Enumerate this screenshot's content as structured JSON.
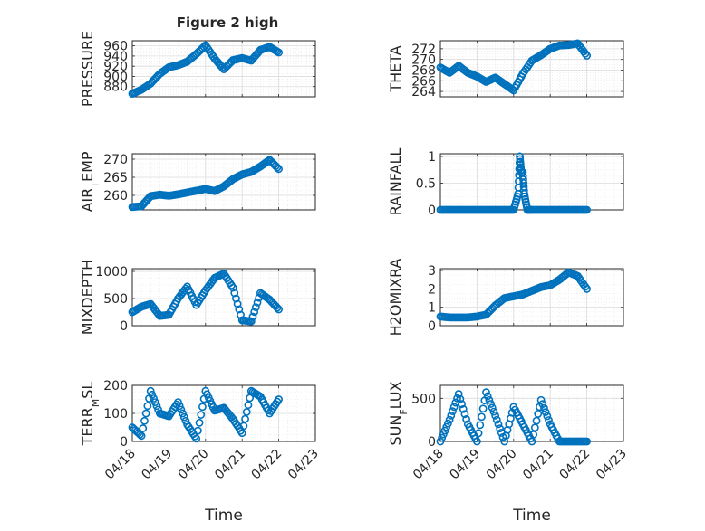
{
  "figure": {
    "title": "Figure 2 high",
    "xlabel": "Time",
    "x_ticks": [
      "04/18",
      "04/19",
      "04/20",
      "04/21",
      "04/22",
      "04/23"
    ],
    "x_range": [
      "04/18",
      "04/23"
    ],
    "marker": "circle",
    "color": "#0072BD",
    "grid": true
  },
  "chart_data": [
    {
      "type": "scatter",
      "ylabel": "PRESSURE",
      "ylim": [
        860,
        970
      ],
      "yticks": [
        880,
        900,
        920,
        940,
        960
      ],
      "x": [
        "04/18 00:00",
        "04/18 06:00",
        "04/18 12:00",
        "04/18 18:00",
        "04/19 00:00",
        "04/19 06:00",
        "04/19 12:00",
        "04/19 18:00",
        "04/20 00:00",
        "04/20 06:00",
        "04/20 12:00",
        "04/20 18:00",
        "04/21 00:00",
        "04/21 06:00",
        "04/21 12:00",
        "04/21 18:00",
        "04/22 00:00"
      ],
      "y": [
        866,
        874,
        886,
        905,
        918,
        922,
        929,
        944,
        961,
        935,
        914,
        932,
        936,
        931,
        952,
        958,
        947
      ]
    },
    {
      "type": "scatter",
      "ylabel": "THETA",
      "ylim": [
        263,
        273.5
      ],
      "yticks": [
        264,
        266,
        268,
        270,
        272
      ],
      "x": [
        "04/18 00:00",
        "04/18 06:00",
        "04/18 12:00",
        "04/18 18:00",
        "04/19 00:00",
        "04/19 06:00",
        "04/19 12:00",
        "04/19 18:00",
        "04/20 00:00",
        "04/20 06:00",
        "04/20 12:00",
        "04/20 18:00",
        "04/21 00:00",
        "04/21 06:00",
        "04/21 12:00",
        "04/21 18:00",
        "04/22 00:00"
      ],
      "y": [
        268.5,
        267.5,
        268.8,
        267.5,
        266.8,
        265.8,
        266.6,
        265.4,
        264.2,
        267.3,
        269.8,
        270.8,
        272,
        272.6,
        272.7,
        273,
        270.7
      ]
    },
    {
      "type": "scatter",
      "ylabel": "AIR_TEMP",
      "ylim": [
        256,
        271.5
      ],
      "yticks": [
        260,
        265,
        270
      ],
      "x": [
        "04/18 00:00",
        "04/18 06:00",
        "04/18 12:00",
        "04/18 18:00",
        "04/19 00:00",
        "04/19 06:00",
        "04/19 12:00",
        "04/19 18:00",
        "04/20 00:00",
        "04/20 06:00",
        "04/20 12:00",
        "04/20 18:00",
        "04/21 00:00",
        "04/21 06:00",
        "04/21 12:00",
        "04/21 18:00",
        "04/22 00:00"
      ],
      "y": [
        256.8,
        257,
        259.8,
        260.2,
        259.9,
        260.3,
        260.8,
        261.3,
        261.8,
        261.2,
        262.5,
        264.5,
        265.8,
        266.5,
        268,
        269.8,
        267.3
      ]
    },
    {
      "type": "scatter",
      "ylabel": "RAINFALL",
      "ylim": [
        0,
        1.05
      ],
      "yticks": [
        0,
        0.5,
        1
      ],
      "x": [
        "04/18 00:00",
        "04/18 06:00",
        "04/18 12:00",
        "04/18 18:00",
        "04/19 00:00",
        "04/19 06:00",
        "04/19 12:00",
        "04/19 18:00",
        "04/20 00:00",
        "04/20 03:00",
        "04/20 04:00",
        "04/20 05:00",
        "04/20 06:00",
        "04/20 07:00",
        "04/20 09:00",
        "04/20 12:00",
        "04/20 18:00",
        "04/21 00:00",
        "04/21 06:00",
        "04/21 12:00",
        "04/21 18:00",
        "04/22 00:00"
      ],
      "y": [
        0,
        0,
        0,
        0,
        0,
        0,
        0,
        0,
        0,
        0.3,
        1,
        0.7,
        0.7,
        0.3,
        0,
        0,
        0,
        0,
        0,
        0,
        0,
        0
      ]
    },
    {
      "type": "scatter",
      "ylabel": "MIXDEPTH",
      "ylim": [
        0,
        1050
      ],
      "yticks": [
        0,
        500,
        1000
      ],
      "x": [
        "04/18 00:00",
        "04/18 06:00",
        "04/18 12:00",
        "04/18 18:00",
        "04/19 00:00",
        "04/19 06:00",
        "04/19 12:00",
        "04/19 18:00",
        "04/20 00:00",
        "04/20 06:00",
        "04/20 12:00",
        "04/20 18:00",
        "04/21 00:00",
        "04/21 06:00",
        "04/21 12:00",
        "04/21 18:00",
        "04/22 00:00"
      ],
      "y": [
        250,
        350,
        400,
        180,
        200,
        500,
        720,
        380,
        650,
        880,
        960,
        700,
        100,
        80,
        600,
        480,
        300
      ]
    },
    {
      "type": "scatter",
      "ylabel": "H2OMIXRA",
      "ylim": [
        0,
        3.1
      ],
      "yticks": [
        0,
        1,
        2,
        3
      ],
      "x": [
        "04/18 00:00",
        "04/18 06:00",
        "04/18 12:00",
        "04/18 18:00",
        "04/19 00:00",
        "04/19 06:00",
        "04/19 12:00",
        "04/19 18:00",
        "04/20 00:00",
        "04/20 06:00",
        "04/20 12:00",
        "04/20 18:00",
        "04/21 00:00",
        "04/21 06:00",
        "04/21 12:00",
        "04/21 18:00",
        "04/22 00:00"
      ],
      "y": [
        0.5,
        0.45,
        0.45,
        0.45,
        0.5,
        0.6,
        1.1,
        1.5,
        1.6,
        1.7,
        1.9,
        2.1,
        2.2,
        2.5,
        2.9,
        2.7,
        2.0
      ]
    },
    {
      "type": "scatter",
      "ylabel": "TERR_MSL",
      "ylim": [
        0,
        200
      ],
      "yticks": [
        0,
        100,
        200
      ],
      "x": [
        "04/18 00:00",
        "04/18 06:00",
        "04/18 12:00",
        "04/18 18:00",
        "04/19 00:00",
        "04/19 06:00",
        "04/19 12:00",
        "04/19 18:00",
        "04/20 00:00",
        "04/20 06:00",
        "04/20 12:00",
        "04/20 18:00",
        "04/21 00:00",
        "04/21 06:00",
        "04/21 12:00",
        "04/21 18:00",
        "04/22 00:00"
      ],
      "y": [
        50,
        20,
        180,
        100,
        90,
        140,
        60,
        10,
        180,
        110,
        120,
        80,
        30,
        180,
        160,
        100,
        150
      ]
    },
    {
      "type": "scatter",
      "ylabel": "SUN_FLUX",
      "ylim": [
        0,
        650
      ],
      "yticks": [
        0,
        500
      ],
      "x": [
        "04/18 00:00",
        "04/18 06:00",
        "04/18 12:00",
        "04/18 18:00",
        "04/19 00:00",
        "04/19 06:00",
        "04/19 12:00",
        "04/19 18:00",
        "04/20 00:00",
        "04/20 06:00",
        "04/20 12:00",
        "04/20 18:00",
        "04/21 00:00",
        "04/21 06:00",
        "04/21 12:00",
        "04/21 18:00",
        "04/22 00:00"
      ],
      "y": [
        0,
        250,
        550,
        200,
        0,
        570,
        300,
        0,
        400,
        200,
        0,
        480,
        200,
        0,
        0,
        0,
        0
      ]
    }
  ]
}
